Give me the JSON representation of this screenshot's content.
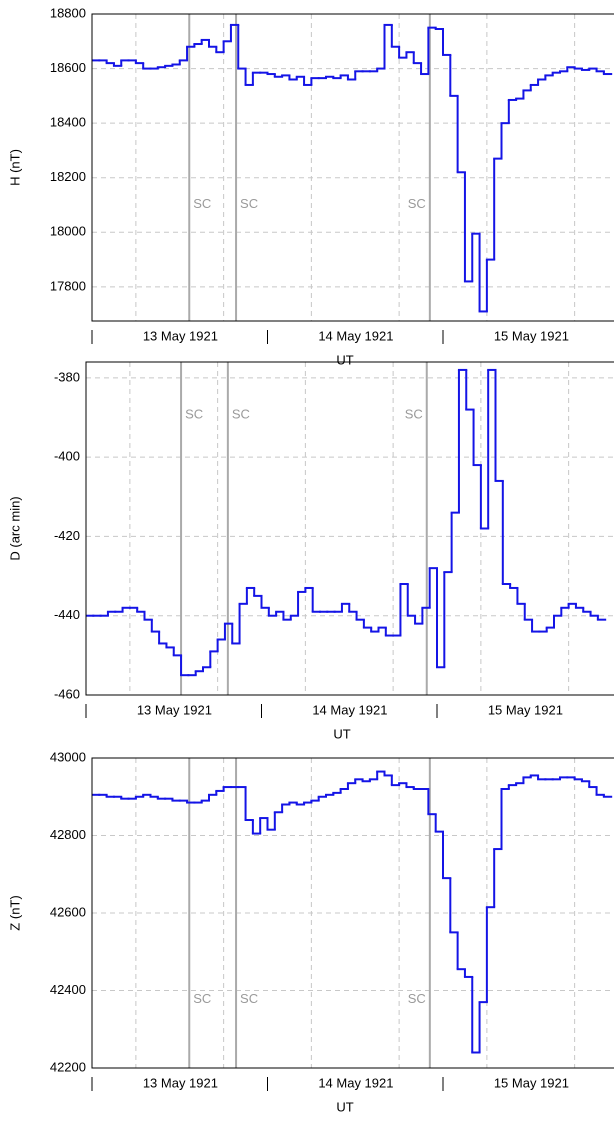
{
  "chart_data": [
    {
      "type": "step",
      "ylabel": "H (nT)",
      "xlabel": "UT",
      "categories": [
        null,
        null,
        null,
        null,
        null,
        null,
        null,
        null,
        null,
        null,
        null,
        null,
        "13 May 1921",
        null,
        null,
        null,
        null,
        null,
        null,
        null,
        null,
        null,
        null,
        null,
        null,
        null,
        null,
        null,
        null,
        null,
        null,
        null,
        null,
        null,
        null,
        null,
        "14 May 1921",
        null,
        null,
        null,
        null,
        null,
        null,
        null,
        null,
        null,
        null,
        null,
        null,
        null,
        null,
        null,
        null,
        null,
        null,
        null,
        null,
        null,
        null,
        null,
        "15 May 1921",
        null,
        null,
        null,
        null,
        null,
        null,
        null,
        null,
        null,
        null
      ],
      "values": [
        18630,
        18630,
        18620,
        18610,
        18630,
        18630,
        18620,
        18600,
        18600,
        18605,
        18610,
        18615,
        18630,
        18680,
        18690,
        18705,
        18680,
        18660,
        18700,
        18760,
        18600,
        18540,
        18585,
        18585,
        18580,
        18570,
        18575,
        18560,
        18570,
        18540,
        18565,
        18565,
        18570,
        18565,
        18575,
        18560,
        18590,
        18590,
        18590,
        18600,
        18760,
        18680,
        18640,
        18660,
        18620,
        18580,
        18750,
        18745,
        18650,
        18500,
        18220,
        17820,
        17995,
        17710,
        17900,
        18270,
        18400,
        18485,
        18490,
        18520,
        18540,
        18560,
        18575,
        18585,
        18590,
        18605,
        18600,
        18595,
        18600,
        18590,
        18580
      ],
      "color": "#1414e6",
      "annotations": [
        {
          "text": "SC",
          "x": 13.3
        },
        {
          "text": "SC",
          "x": 19.7
        },
        {
          "text": "SC",
          "x": 46.2
        }
      ],
      "ylim": [
        17675,
        18800
      ],
      "yticks": [
        17800,
        18000,
        18200,
        18400,
        18600,
        18800
      ],
      "grid": true
    },
    {
      "type": "step",
      "ylabel": "D (arc min)",
      "xlabel": "UT",
      "categories": [
        null,
        null,
        null,
        null,
        null,
        null,
        null,
        null,
        null,
        null,
        null,
        null,
        "13 May 1921",
        null,
        null,
        null,
        null,
        null,
        null,
        null,
        null,
        null,
        null,
        null,
        null,
        null,
        null,
        null,
        null,
        null,
        null,
        null,
        null,
        null,
        null,
        null,
        "14 May 1921",
        null,
        null,
        null,
        null,
        null,
        null,
        null,
        null,
        null,
        null,
        null,
        null,
        null,
        null,
        null,
        null,
        null,
        null,
        null,
        null,
        null,
        null,
        null,
        "15 May 1921",
        null,
        null,
        null,
        null,
        null,
        null,
        null,
        null,
        null,
        null
      ],
      "values": [
        -440,
        -440,
        -440,
        -439,
        -439,
        -438,
        -438,
        -439,
        -441,
        -444,
        -447,
        -448,
        -450,
        -455,
        -455,
        -454,
        -453,
        -449,
        -446,
        -442,
        -447,
        -437,
        -433,
        -435,
        -438,
        -440,
        -439,
        -441,
        -440,
        -434,
        -433,
        -439,
        -439,
        -439,
        -439,
        -437,
        -439,
        -441,
        -443,
        -444,
        -443,
        -445,
        -445,
        -432,
        -440,
        -442,
        -438,
        -428,
        -453,
        -429,
        -414,
        -378,
        -388,
        -402,
        -418,
        -378,
        -406,
        -432,
        -433,
        -437,
        -441,
        -444,
        -444,
        -443,
        -440,
        -438,
        -437,
        -438,
        -439,
        -440,
        -441
      ],
      "color": "#1414e6",
      "annotations": [
        {
          "text": "SC",
          "x": 13.0
        },
        {
          "text": "SC",
          "x": 19.4
        },
        {
          "text": "SC",
          "x": 46.6
        }
      ],
      "ylim": [
        -460,
        -376
      ],
      "yticks": [
        -460,
        -440,
        -420,
        -400,
        -380
      ],
      "grid": true
    },
    {
      "type": "step",
      "ylabel": "Z (nT)",
      "xlabel": "UT",
      "categories": [
        null,
        null,
        null,
        null,
        null,
        null,
        null,
        null,
        null,
        null,
        null,
        null,
        "13 May 1921",
        null,
        null,
        null,
        null,
        null,
        null,
        null,
        null,
        null,
        null,
        null,
        null,
        null,
        null,
        null,
        null,
        null,
        null,
        null,
        null,
        null,
        null,
        null,
        "14 May 1921",
        null,
        null,
        null,
        null,
        null,
        null,
        null,
        null,
        null,
        null,
        null,
        null,
        null,
        null,
        null,
        null,
        null,
        null,
        null,
        null,
        null,
        null,
        null,
        "15 May 1921",
        null,
        null,
        null,
        null,
        null,
        null,
        null,
        null,
        null,
        null
      ],
      "values": [
        42905,
        42905,
        42900,
        42900,
        42895,
        42895,
        42900,
        42905,
        42900,
        42895,
        42895,
        42890,
        42890,
        42885,
        42885,
        42890,
        42905,
        42915,
        42925,
        42925,
        42925,
        42840,
        42805,
        42845,
        42815,
        42860,
        42880,
        42885,
        42880,
        42885,
        42890,
        42900,
        42905,
        42910,
        42920,
        42935,
        42945,
        42940,
        42945,
        42965,
        42955,
        42930,
        42935,
        42925,
        42920,
        42920,
        42855,
        42810,
        42690,
        42550,
        42455,
        42435,
        42240,
        42370,
        42615,
        42765,
        42920,
        42930,
        42935,
        42950,
        42955,
        42945,
        42945,
        42945,
        42950,
        42950,
        42945,
        42940,
        42925,
        42905,
        42900
      ],
      "color": "#1414e6",
      "annotations": [
        {
          "text": "SC",
          "x": 13.3
        },
        {
          "text": "SC",
          "x": 19.7
        },
        {
          "text": "SC",
          "x": 46.2
        }
      ],
      "ylim": [
        42200,
        43000
      ],
      "yticks": [
        42200,
        42400,
        42600,
        42800,
        43000
      ],
      "grid": true
    }
  ]
}
